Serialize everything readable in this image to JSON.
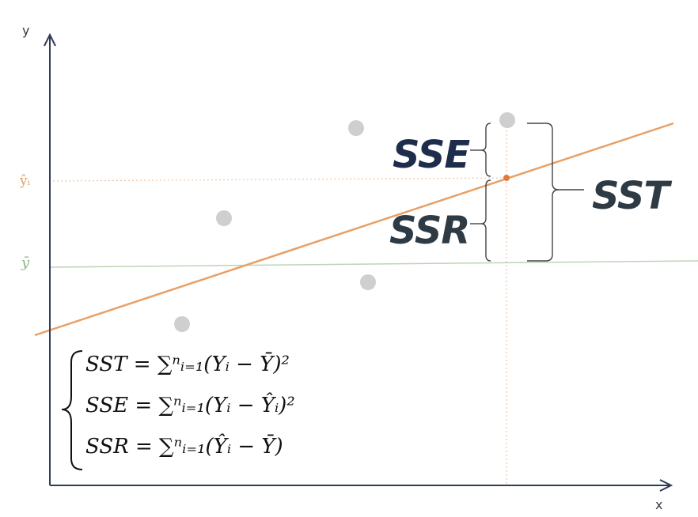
{
  "axes": {
    "x_label": "x",
    "y_label": "y"
  },
  "markers": {
    "y_hat_label": "ŷᵢ",
    "y_bar_label": "ȳ"
  },
  "labels": {
    "sse": "SSE",
    "ssr": "SSR",
    "sst": "SST"
  },
  "formulas": [
    "SST = ∑ⁿᵢ₌₁(Yᵢ − Ȳ)²",
    "SSE = ∑ⁿᵢ₌₁(Yᵢ − Ŷᵢ)²",
    "SSR = ∑ⁿᵢ₌₁(Ŷᵢ − Ȳ)"
  ],
  "colors": {
    "axis": "#2f3b57",
    "regression_line": "#e8a066",
    "mean_line": "#bcd5b6",
    "points": "#cfcfcf",
    "labels": "#2e3a44",
    "sse_label": "#1f2d4d",
    "brace": "#444444"
  }
}
